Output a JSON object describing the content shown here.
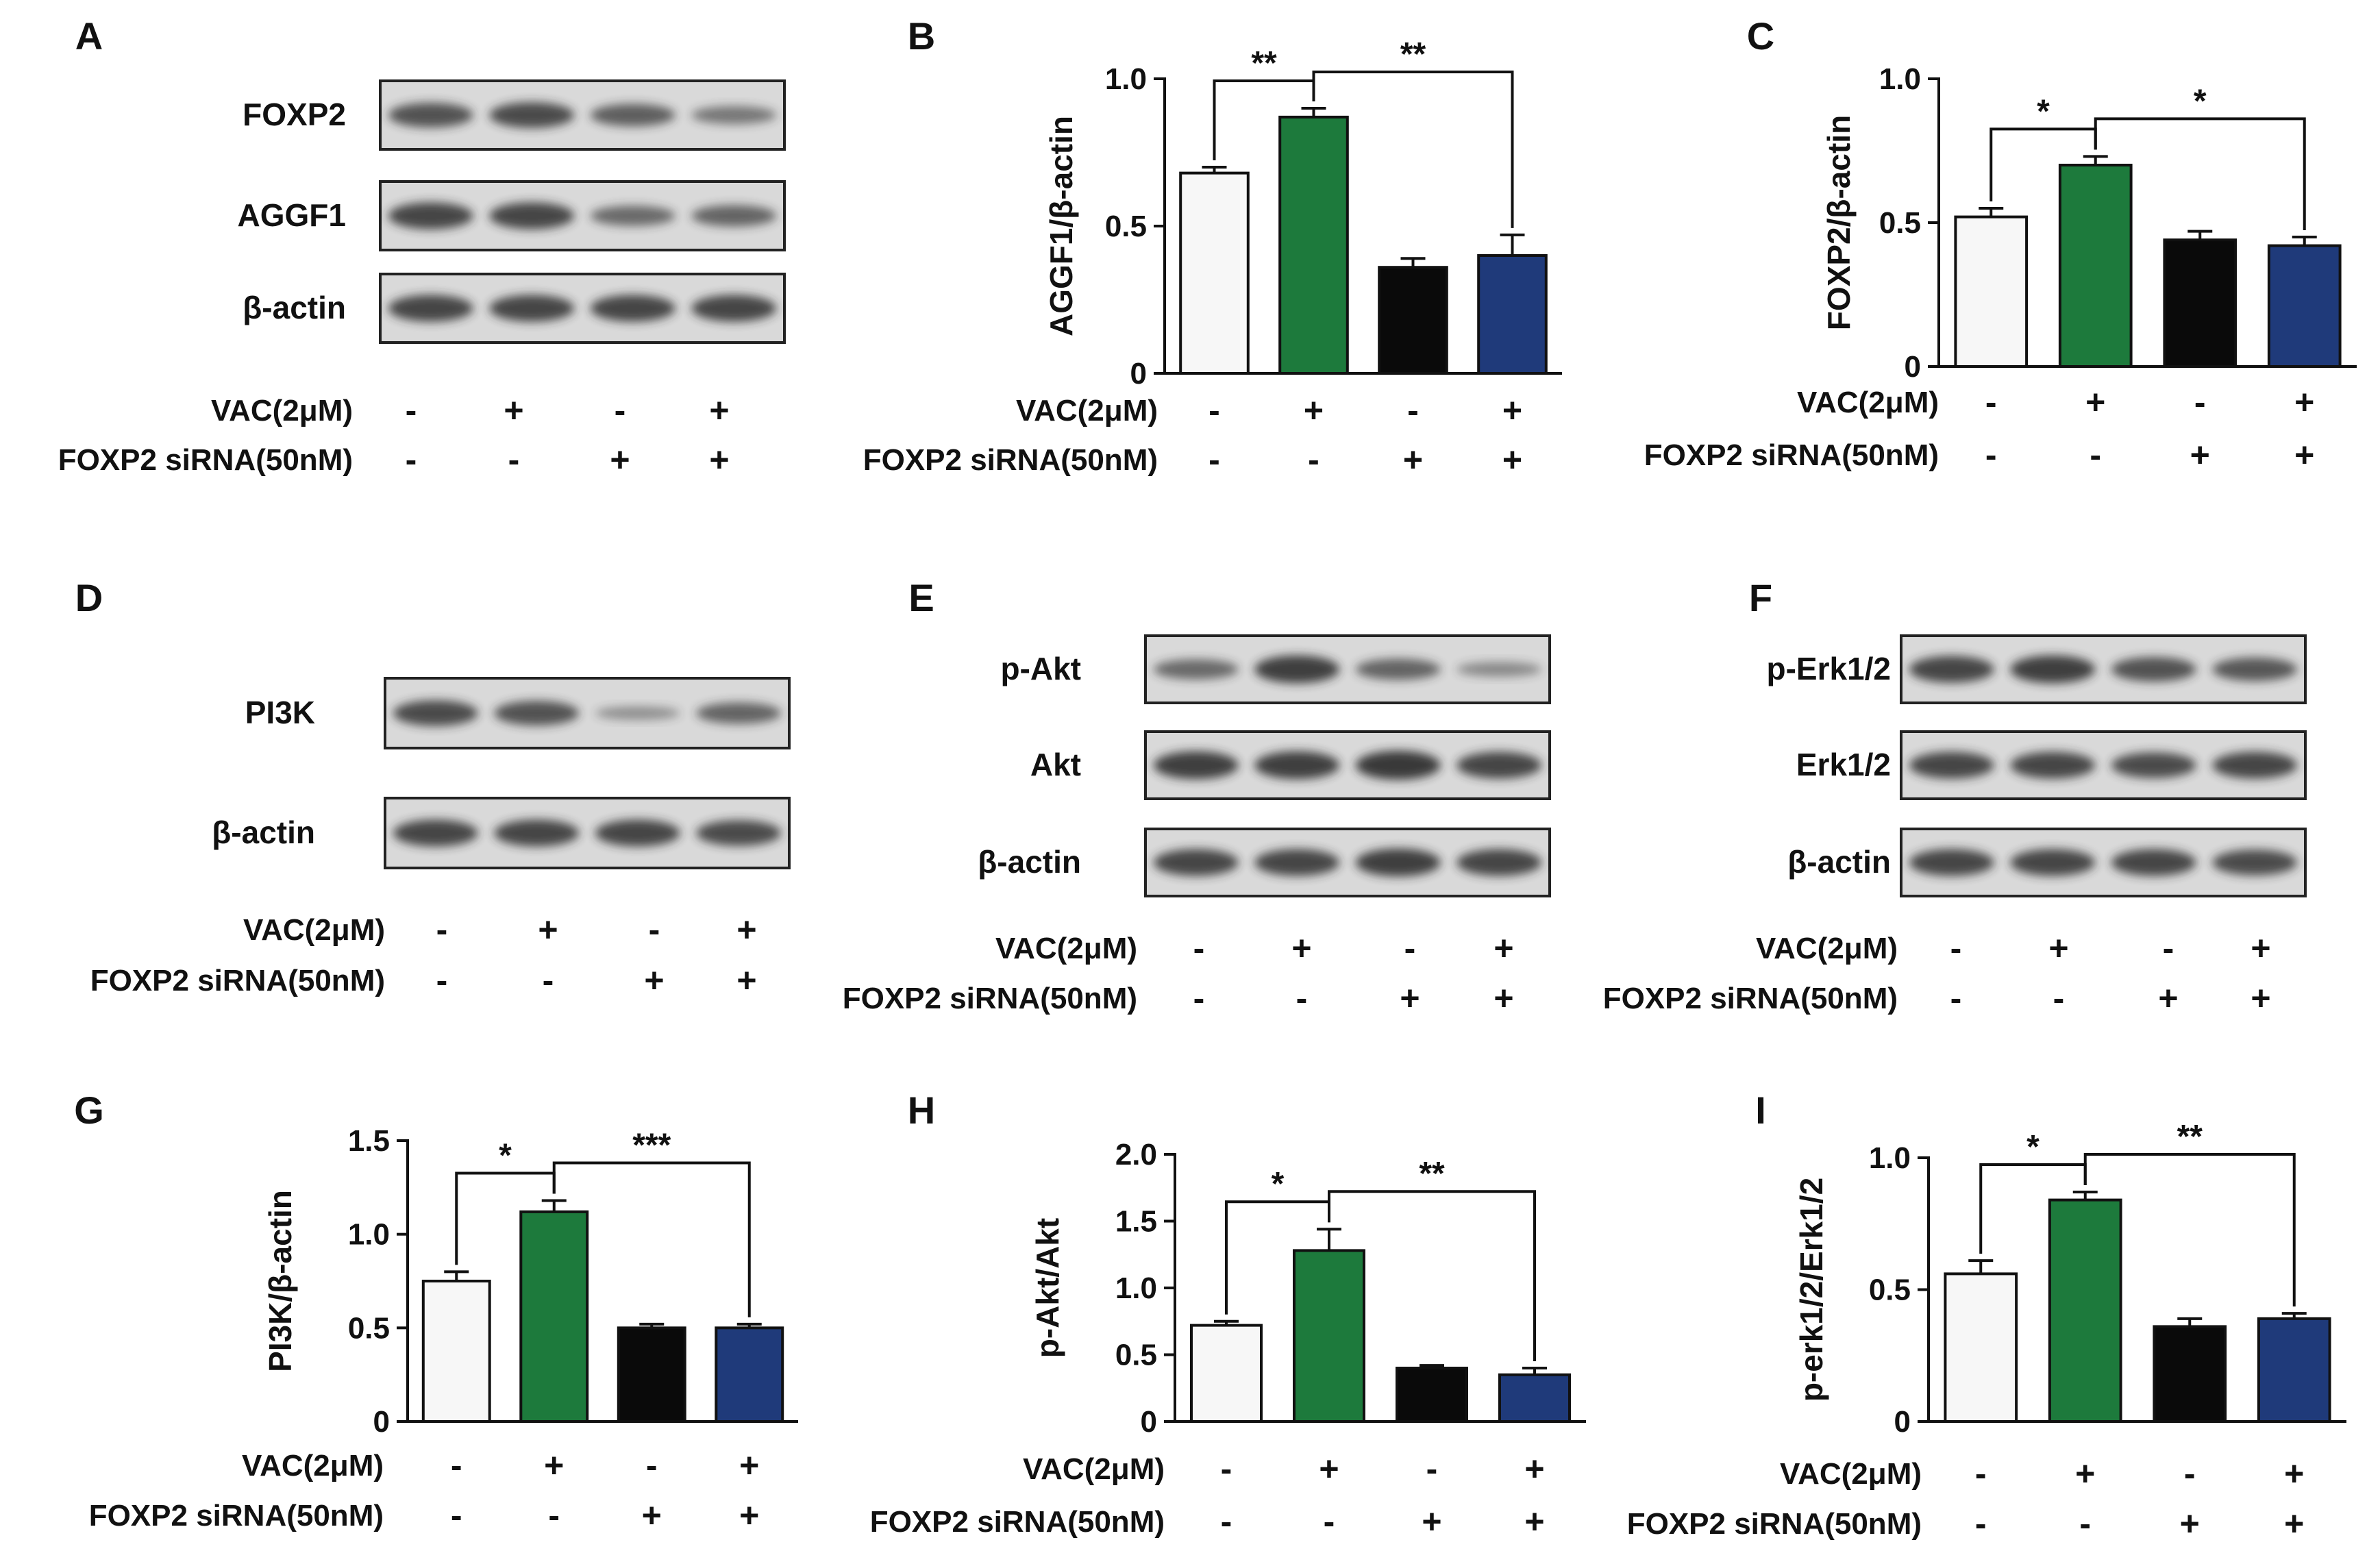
{
  "colors": {
    "control": "#f7f7f7",
    "vac": "#1d7a3c",
    "sirna": "#0a0a0a",
    "vac_sirna": "#1f3a7a",
    "band": "#2a2a2a"
  },
  "condition_rows": {
    "vac_label": "VAC(2μM)",
    "sirna_label": "FOXP2 siRNA(50nM)",
    "vac_signs": [
      "-",
      "+",
      "-",
      "+"
    ],
    "sirna_signs": [
      "-",
      "-",
      "+",
      "+"
    ]
  },
  "blots": [
    {
      "panel": "A",
      "rows": [
        {
          "label": "FOXP2",
          "intensity": [
            0.75,
            0.8,
            0.65,
            0.45
          ]
        },
        {
          "label": "AGGF1",
          "intensity": [
            0.85,
            0.85,
            0.55,
            0.6
          ]
        },
        {
          "label": "β-actin",
          "intensity": [
            0.85,
            0.85,
            0.85,
            0.85
          ]
        }
      ]
    },
    {
      "panel": "D",
      "rows": [
        {
          "label": "PI3K",
          "intensity": [
            0.8,
            0.75,
            0.25,
            0.6
          ]
        },
        {
          "label": "β-actin",
          "intensity": [
            0.85,
            0.85,
            0.85,
            0.8
          ]
        }
      ]
    },
    {
      "panel": "E",
      "rows": [
        {
          "label": "p-Akt",
          "intensity": [
            0.55,
            0.9,
            0.6,
            0.3
          ]
        },
        {
          "label": "Akt",
          "intensity": [
            0.9,
            0.9,
            0.95,
            0.85
          ]
        },
        {
          "label": "β-actin",
          "intensity": [
            0.85,
            0.85,
            0.9,
            0.85
          ]
        }
      ]
    },
    {
      "panel": "F",
      "rows": [
        {
          "label": "p-Erk1/2",
          "intensity": [
            0.85,
            0.9,
            0.75,
            0.7
          ]
        },
        {
          "label": "Erk1/2",
          "intensity": [
            0.85,
            0.85,
            0.8,
            0.85
          ]
        },
        {
          "label": "β-actin",
          "intensity": [
            0.85,
            0.85,
            0.85,
            0.8
          ]
        }
      ]
    }
  ],
  "chart_data": [
    {
      "panel": "B",
      "type": "bar",
      "ylabel": "AGGF1/β-actin",
      "ylim": [
        0,
        1.0
      ],
      "yticks": [
        {
          "v": 0,
          "t": "0"
        },
        {
          "v": 0.5,
          "t": "0.5"
        },
        {
          "v": 1.0,
          "t": "1.0"
        }
      ],
      "values": [
        0.68,
        0.87,
        0.36,
        0.4
      ],
      "errors": [
        0.02,
        0.03,
        0.03,
        0.07
      ],
      "brackets": [
        {
          "from": 0,
          "to": 1,
          "label": "**"
        },
        {
          "from": 1,
          "to": 3,
          "label": "**"
        }
      ]
    },
    {
      "panel": "C",
      "type": "bar",
      "ylabel": "FOXP2/β-actin",
      "ylim": [
        0,
        1.0
      ],
      "yticks": [
        {
          "v": 0,
          "t": "0"
        },
        {
          "v": 0.5,
          "t": "0.5"
        },
        {
          "v": 1.0,
          "t": "1.0"
        }
      ],
      "values": [
        0.52,
        0.7,
        0.44,
        0.42
      ],
      "errors": [
        0.03,
        0.03,
        0.03,
        0.03
      ],
      "brackets": [
        {
          "from": 0,
          "to": 1,
          "label": "*"
        },
        {
          "from": 1,
          "to": 3,
          "label": "*"
        }
      ]
    },
    {
      "panel": "G",
      "type": "bar",
      "ylabel": "PI3K/β-actin",
      "ylim": [
        0,
        1.5
      ],
      "yticks": [
        {
          "v": 0,
          "t": "0"
        },
        {
          "v": 0.5,
          "t": "0.5"
        },
        {
          "v": 1.0,
          "t": "1.0"
        },
        {
          "v": 1.5,
          "t": "1.5"
        }
      ],
      "values": [
        0.75,
        1.12,
        0.5,
        0.5
      ],
      "errors": [
        0.05,
        0.06,
        0.02,
        0.02
      ],
      "brackets": [
        {
          "from": 0,
          "to": 1,
          "label": "*"
        },
        {
          "from": 1,
          "to": 3,
          "label": "***"
        }
      ]
    },
    {
      "panel": "H",
      "type": "bar",
      "ylabel": "p-Akt/Akt",
      "ylim": [
        0,
        2.0
      ],
      "yticks": [
        {
          "v": 0,
          "t": "0"
        },
        {
          "v": 0.5,
          "t": "0.5"
        },
        {
          "v": 1.0,
          "t": "1.0"
        },
        {
          "v": 1.5,
          "t": "1.5"
        },
        {
          "v": 2.0,
          "t": "2.0"
        }
      ],
      "values": [
        0.72,
        1.28,
        0.4,
        0.35
      ],
      "errors": [
        0.03,
        0.16,
        0.02,
        0.05
      ],
      "brackets": [
        {
          "from": 0,
          "to": 1,
          "label": "*"
        },
        {
          "from": 1,
          "to": 3,
          "label": "**"
        }
      ]
    },
    {
      "panel": "I",
      "type": "bar",
      "ylabel": "p-erk1/2/Erk1/2",
      "ylim": [
        0,
        1.0
      ],
      "yticks": [
        {
          "v": 0,
          "t": "0"
        },
        {
          "v": 0.5,
          "t": "0.5"
        },
        {
          "v": 1.0,
          "t": "1.0"
        }
      ],
      "values": [
        0.56,
        0.84,
        0.36,
        0.39
      ],
      "errors": [
        0.05,
        0.03,
        0.03,
        0.02
      ],
      "brackets": [
        {
          "from": 0,
          "to": 1,
          "label": "*"
        },
        {
          "from": 1,
          "to": 3,
          "label": "**"
        }
      ]
    }
  ]
}
